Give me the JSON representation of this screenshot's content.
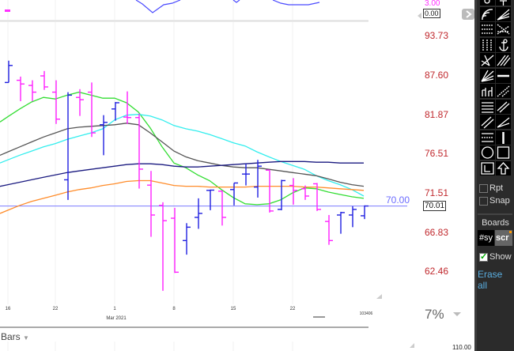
{
  "indicator": {
    "upper_label": "3.00",
    "zero_label": "0.00"
  },
  "price_axis": {
    "labels": [
      "93.73",
      "87.60",
      "81.87",
      "76.51",
      "71.51",
      "66.83",
      "62.46"
    ],
    "scale": "log",
    "color": "#c0282d"
  },
  "reference_line": {
    "value": 70.0,
    "label": "70.00",
    "color": "#7b7bff"
  },
  "last_price": "70.01",
  "date_axis": {
    "ticks": [
      {
        "label": "16",
        "date_index": 0
      },
      {
        "label": "22",
        "date_index": 4
      },
      {
        "label": "1",
        "date_index": 9
      },
      {
        "label": "8",
        "date_index": 14
      },
      {
        "label": "15",
        "date_index": 19
      },
      {
        "label": "22",
        "date_index": 24
      }
    ],
    "month_label": "Mar 2021",
    "clock": "103406"
  },
  "zoom_pct": "7%",
  "chart_type_label": "Bars",
  "lower_pane_label": "110.00",
  "chart_data": {
    "type": "ohlc",
    "ylim": [
      58.5,
      95.5
    ],
    "y_scale": "log",
    "up_color": "#2020e0",
    "down_color": "#ff20ff",
    "dates": [
      "Feb 16",
      "Feb 17",
      "Feb 18",
      "Feb 19",
      "Feb 22",
      "Feb 23",
      "Feb 24",
      "Feb 25",
      "Feb 26",
      "Mar 1",
      "Mar 2",
      "Mar 3",
      "Mar 4",
      "Mar 5",
      "Mar 8",
      "Mar 9",
      "Mar 10",
      "Mar 11",
      "Mar 12",
      "Mar 15",
      "Mar 16",
      "Mar 17",
      "Mar 18",
      "Mar 19",
      "Mar 22",
      "Mar 23",
      "Mar 24",
      "Mar 25",
      "Mar 26",
      "Mar 29",
      "Mar 30"
    ],
    "open": [
      86.61,
      86.94,
      86.17,
      87.6,
      85.18,
      73.24,
      84.41,
      85.18,
      80.53,
      82.75,
      81.6,
      81.53,
      72.57,
      70.08,
      68.55,
      65.96,
      68.65,
      71.92,
      71.82,
      72.02,
      73.97,
      72.33,
      74.47,
      69.6,
      72.53,
      72.12,
      72.74,
      68.17,
      68.93,
      68.93,
      68.84
    ],
    "high": [
      89.93,
      87.49,
      86.94,
      88.34,
      86.94,
      85.18,
      85.62,
      86.61,
      81.87,
      83.75,
      85.29,
      82.09,
      74.37,
      70.46,
      69.79,
      67.97,
      70.94,
      72.02,
      71.92,
      72.84,
      75.29,
      75.8,
      74.47,
      73.24,
      73.45,
      72.53,
      72.84,
      68.93,
      69.31,
      69.98,
      70.08
    ],
    "low": [
      86.61,
      83.86,
      83.86,
      85.51,
      80.64,
      70.75,
      81.76,
      78.85,
      76.41,
      81.09,
      80.64,
      72.14,
      66.39,
      60.49,
      62.38,
      64.38,
      67.31,
      69.5,
      67.69,
      70.08,
      72.53,
      71.03,
      69.22,
      69.5,
      70.17,
      70.75,
      69.41,
      65.48,
      66.74,
      67.5,
      68.45
    ],
    "close": [
      89.19,
      86.39,
      85.18,
      85.95,
      81.31,
      84.74,
      84.08,
      79.41,
      80.86,
      83.64,
      81.53,
      74.6,
      68.93,
      68.26,
      62.46,
      67.5,
      69.12,
      71.95,
      68.65,
      72.84,
      73.97,
      74.98,
      69.41,
      73.14,
      71.92,
      71.22,
      69.6,
      65.96,
      69.22,
      69.6,
      70.01
    ],
    "series": [
      {
        "color": "#33dd33",
        "values": [
          81.65,
          82.75,
          83.75,
          84.41,
          84.19,
          84.74,
          85.18,
          84.74,
          84.3,
          84.3,
          83.64,
          82.31,
          80.08,
          77.52,
          75.39,
          74.78,
          73.86,
          73.14,
          72.02,
          71.03,
          70.27,
          70.17,
          70.27,
          70.75,
          71.61,
          72.22,
          72.12,
          71.71,
          71.41,
          71.13,
          70.94
        ]
      },
      {
        "color": "#33eeee",
        "values": [
          75.8,
          76.41,
          76.96,
          77.52,
          77.96,
          78.52,
          78.97,
          79.41,
          79.97,
          81.2,
          81.87,
          81.98,
          81.76,
          81.2,
          80.42,
          79.97,
          79.64,
          79.19,
          78.63,
          78.07,
          77.63,
          76.85,
          76.2,
          75.59,
          75.08,
          74.57,
          73.76,
          73.14,
          72.63,
          72.02,
          71.22
        ]
      },
      {
        "color": "#555555",
        "values": [
          76.85,
          77.52,
          78.18,
          78.85,
          79.41,
          79.97,
          80.19,
          80.31,
          80.42,
          80.53,
          80.75,
          80.53,
          79.41,
          78.18,
          76.96,
          76.2,
          75.69,
          75.39,
          75.08,
          74.88,
          74.78,
          74.78,
          74.57,
          74.37,
          74.16,
          73.96,
          73.76,
          73.35,
          72.94,
          72.63,
          72.43
        ]
      },
      {
        "color": "#1a1a80",
        "values": [
          72.63,
          72.94,
          73.24,
          73.55,
          73.86,
          74.16,
          74.37,
          74.57,
          74.78,
          74.98,
          75.19,
          75.29,
          75.29,
          75.19,
          74.98,
          74.88,
          74.88,
          74.98,
          75.08,
          75.19,
          75.29,
          75.39,
          75.49,
          75.59,
          75.59,
          75.59,
          75.49,
          75.49,
          75.39,
          75.39,
          75.39
        ]
      },
      {
        "color": "#ff8c2a",
        "values": [
          69.5,
          70.08,
          70.56,
          70.94,
          71.32,
          71.71,
          72.02,
          72.22,
          72.53,
          72.74,
          73.04,
          73.14,
          73.14,
          72.84,
          72.53,
          72.43,
          72.43,
          72.33,
          72.33,
          72.33,
          72.33,
          72.43,
          72.43,
          72.43,
          72.43,
          72.33,
          72.33,
          72.22,
          72.12,
          72.02,
          71.92
        ]
      }
    ]
  },
  "toolbar": {
    "tools": [
      "pen-icon",
      "text-icon",
      "arc-fan-icon",
      "fan-lines-icon",
      "dotted-grid-icon",
      "dotted-cross-icon",
      "vertical-grid-icon",
      "anchor-icon",
      "pitchfork-icon",
      "parallel-lines-icon",
      "speed-fan-icon",
      "horizontal-line-icon",
      "cycle-lines-icon",
      "dotted-diagonal-icon",
      "horizontal-lines-icon",
      "channel-icon",
      "trend-lines-icon",
      "fan-icon",
      "dotted-channel-icon",
      "vertical-line-icon",
      "circle-icon",
      "rectangle-icon",
      "box-corner-icon",
      "up-arrow-icon"
    ],
    "rpt_label": "Rpt",
    "snap_label": "Snap",
    "boards_label": "Boards",
    "board_sy": "#sy",
    "board_scr": "scr",
    "show_label": "Show",
    "erase_label": "Erase all",
    "show_checked": true,
    "link_color": "#5aaee0"
  }
}
